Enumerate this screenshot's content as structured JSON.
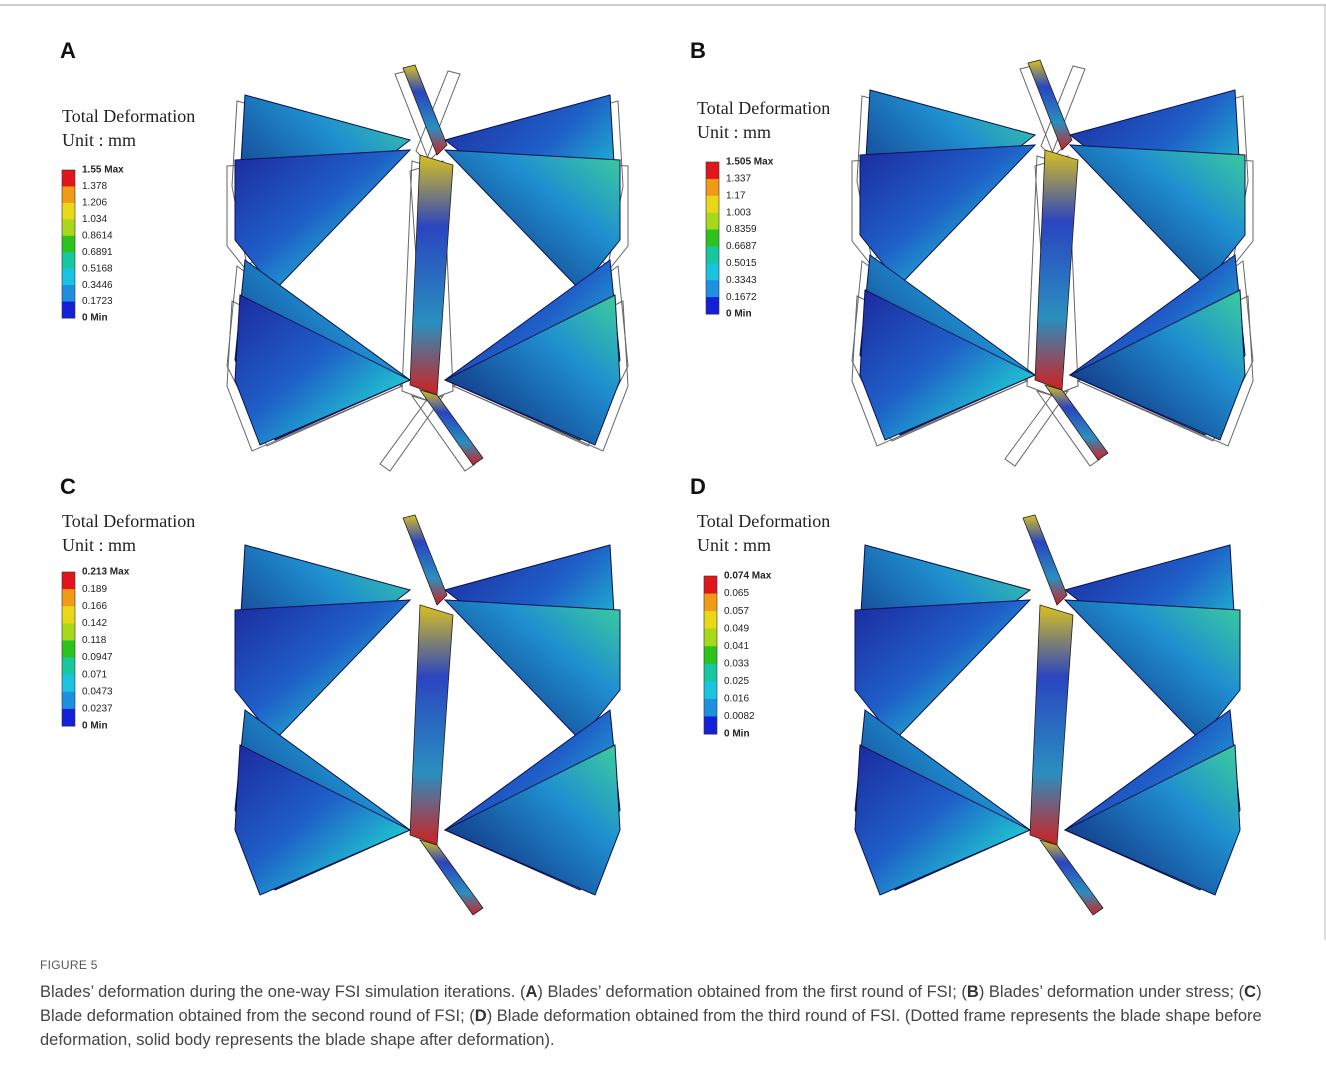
{
  "panels": [
    {
      "label": "A",
      "title": "Total Deformation",
      "unit": "Unit : mm",
      "legend": [
        "1.55 Max",
        "1.378",
        "1.206",
        "1.034",
        "0.8614",
        "0.6891",
        "0.5168",
        "0.3446",
        "0.1723",
        "0 Min"
      ]
    },
    {
      "label": "B",
      "title": "Total Deformation",
      "unit": "Unit : mm",
      "legend": [
        "1.505 Max",
        "1.337",
        "1.17",
        "1.003",
        "0.8359",
        "0.6687",
        "0.5015",
        "0.3343",
        "0.1672",
        "0 Min"
      ]
    },
    {
      "label": "C",
      "title": "Total Deformation",
      "unit": "Unit : mm",
      "legend": [
        "0.213 Max",
        "0.189",
        "0.166",
        "0.142",
        "0.118",
        "0.0947",
        "0.071",
        "0.0473",
        "0.0237",
        "0 Min"
      ]
    },
    {
      "label": "D",
      "title": "Total Deformation",
      "unit": "Unit : mm",
      "legend": [
        "0.074 Max",
        "0.065",
        "0.057",
        "0.049",
        "0.041",
        "0.033",
        "0.025",
        "0.016",
        "0.0082",
        "0 Min"
      ]
    }
  ],
  "caption": {
    "label": "FIGURE 5",
    "parts": [
      "Blades’ deformation during the one-way FSI simulation iterations. (",
      "A",
      ") Blades’ deformation obtained from the first round of FSI; (",
      "B",
      ") Blades’ deformation under stress; (",
      "C",
      ") Blade deformation obtained from the second round of FSI; (",
      "D",
      ") Blade deformation obtained from the third round of FSI. (Dotted frame represents the blade shape before deformation, solid body represents the blade shape after deformation)."
    ]
  }
}
